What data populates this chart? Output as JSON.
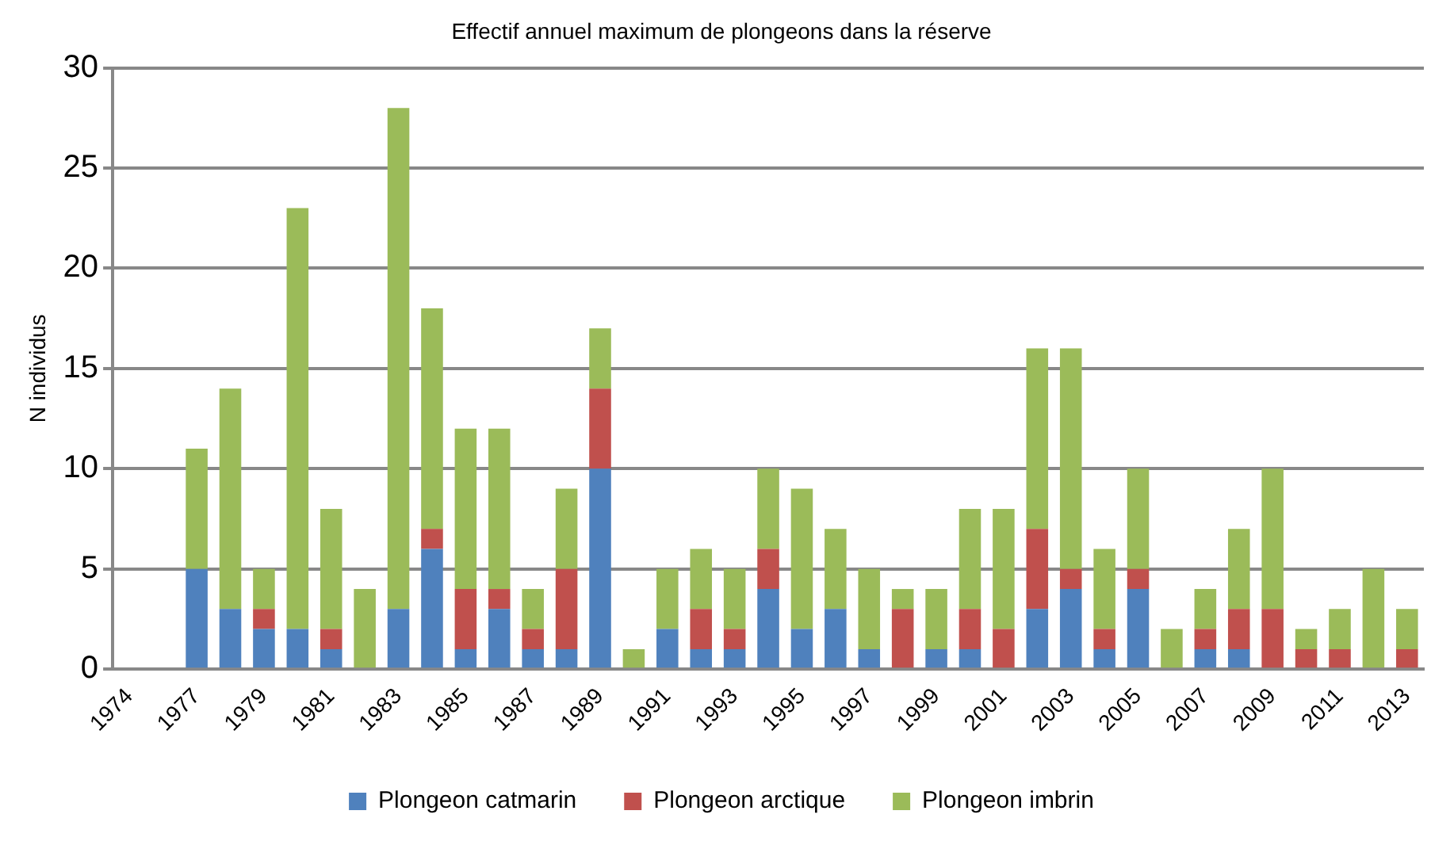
{
  "chart_data": {
    "type": "bar",
    "title": "Effectif annuel maximum de plongeons dans la réserve",
    "ylabel": "N individus",
    "categories": [
      "1974",
      null,
      "1977",
      null,
      "1979",
      null,
      "1981",
      null,
      "1983",
      null,
      "1985",
      null,
      "1987",
      null,
      "1989",
      null,
      "1991",
      null,
      "1993",
      null,
      "1995",
      null,
      "1997",
      null,
      "1999",
      null,
      "2001",
      null,
      "2003",
      null,
      "2005",
      null,
      "2007",
      null,
      "2009",
      null,
      "2011",
      null,
      "2013"
    ],
    "series": [
      {
        "name": "Plongeon catmarin",
        "color": "#4f81bd",
        "values": [
          null,
          null,
          5,
          3,
          2,
          2,
          1,
          0,
          3,
          6,
          1,
          3,
          1,
          1,
          10,
          0,
          2,
          1,
          1,
          4,
          2,
          3,
          1,
          0,
          1,
          1,
          0,
          3,
          4,
          1,
          4,
          0,
          1,
          1,
          0,
          0,
          0,
          0,
          0
        ]
      },
      {
        "name": "Plongeon arctique",
        "color": "#c0504d",
        "values": [
          null,
          null,
          0,
          0,
          1,
          0,
          1,
          0,
          0,
          1,
          3,
          1,
          1,
          4,
          4,
          0,
          0,
          2,
          1,
          2,
          0,
          0,
          0,
          3,
          0,
          2,
          2,
          4,
          1,
          1,
          1,
          0,
          1,
          2,
          3,
          1,
          1,
          0,
          1
        ]
      },
      {
        "name": "Plongeon imbrin",
        "color": "#9bbb59",
        "values": [
          null,
          null,
          6,
          11,
          2,
          21,
          6,
          4,
          25,
          11,
          8,
          8,
          2,
          4,
          3,
          1,
          3,
          3,
          3,
          4,
          7,
          4,
          4,
          1,
          3,
          5,
          6,
          9,
          11,
          4,
          5,
          2,
          2,
          4,
          7,
          1,
          2,
          5,
          2
        ]
      }
    ],
    "stacked": true,
    "ylim": [
      0,
      30
    ],
    "yticks": [
      0,
      5,
      10,
      15,
      20,
      25,
      30
    ],
    "grid": "y",
    "legend": "bottom"
  }
}
